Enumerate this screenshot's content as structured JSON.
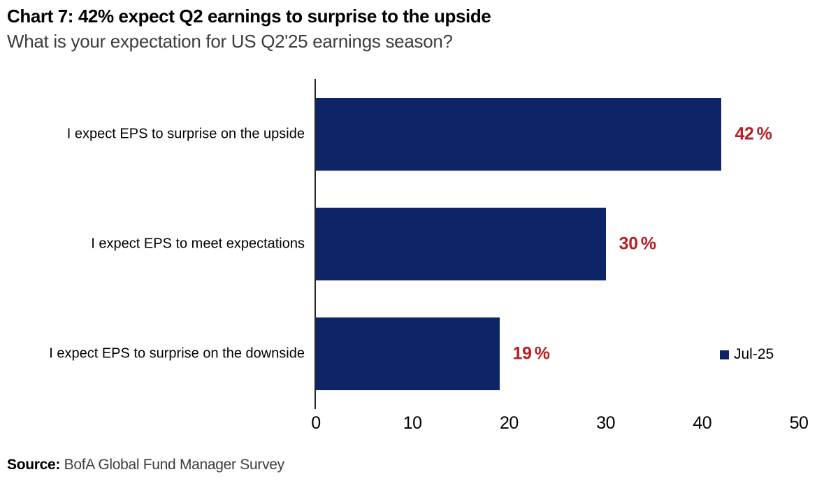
{
  "title": "Chart 7: 42% expect Q2 earnings to surprise to the upside",
  "subtitle": "What is your expectation for US Q2'25 earnings season?",
  "source": {
    "label": "Source:",
    "text": " BofA Global Fund Manager Survey"
  },
  "legend": {
    "label": "Jul-25"
  },
  "colors": {
    "bar": "#0d2467",
    "value_label": "#b81e23",
    "axis": "#262626"
  },
  "chart_data": {
    "type": "bar",
    "orientation": "horizontal",
    "title": "Chart 7: 42% expect Q2 earnings to surprise to the upside",
    "subtitle": "What is your expectation for US Q2'25 earnings season?",
    "categories": [
      "I expect EPS to surprise on the upside",
      "I expect EPS to meet expectations",
      "I expect EPS to surprise on the downside"
    ],
    "series": [
      {
        "name": "Jul-25",
        "values": [
          42,
          30,
          19
        ]
      }
    ],
    "value_labels": [
      "42%",
      "30%",
      "19%"
    ],
    "value_suffix": "%",
    "xlim": [
      0,
      50
    ],
    "xticks": [
      0,
      10,
      20,
      30,
      40,
      50
    ],
    "xlabel": "",
    "ylabel": "",
    "grid": false,
    "legend_position": "right-middle"
  }
}
